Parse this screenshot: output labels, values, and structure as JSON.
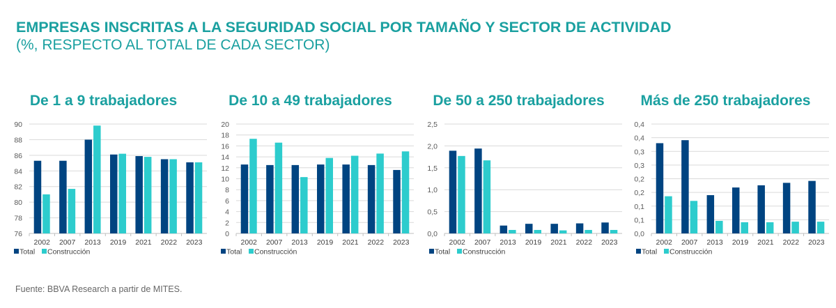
{
  "title": "EMPRESAS INSCRITAS A LA SEGURIDAD SOCIAL POR TAMAÑO Y SECTOR DE ACTIVIDAD",
  "subtitle": "(%, RESPECTO AL TOTAL DE CADA SECTOR)",
  "source": "Fuente: BBVA Research a partir de MITES.",
  "colors": {
    "title": "#1aa0a0",
    "total": "#004481",
    "construccion": "#2dcccd"
  },
  "chart_data": [
    {
      "type": "bar",
      "title": "De 1 a 9 trabajadores",
      "categories": [
        "2002",
        "2007",
        "2013",
        "2019",
        "2021",
        "2022",
        "2023"
      ],
      "series": [
        {
          "name": "Total",
          "values": [
            85.3,
            85.3,
            88.0,
            86.1,
            85.9,
            85.5,
            85.1
          ]
        },
        {
          "name": "Construcción",
          "values": [
            81.0,
            81.7,
            89.8,
            86.2,
            85.8,
            85.5,
            85.1
          ]
        }
      ],
      "ylim": [
        76,
        90
      ],
      "yticks": [
        76,
        78,
        80,
        82,
        84,
        86,
        88,
        90
      ],
      "ytick_labels": [
        "76",
        "78",
        "80",
        "82",
        "84",
        "86",
        "88",
        "90"
      ],
      "legend": "bottom-left",
      "grid": true
    },
    {
      "type": "bar",
      "title": "De 10 a 49 trabajadores",
      "categories": [
        "2002",
        "2007",
        "2013",
        "2019",
        "2021",
        "2022",
        "2023"
      ],
      "series": [
        {
          "name": "Total",
          "values": [
            12.6,
            12.5,
            12.5,
            12.6,
            12.6,
            12.5,
            11.6
          ]
        },
        {
          "name": "Construcción",
          "values": [
            17.3,
            16.6,
            10.3,
            13.8,
            14.2,
            14.6,
            15.0
          ]
        }
      ],
      "ylim": [
        0,
        20
      ],
      "yticks": [
        0,
        2,
        4,
        6,
        8,
        10,
        12,
        14,
        16,
        18,
        20
      ],
      "ytick_labels": [
        "0",
        "2",
        "4",
        "6",
        "8",
        "10",
        "12",
        "14",
        "16",
        "18",
        "20"
      ],
      "legend": "bottom-left",
      "grid": true
    },
    {
      "type": "bar",
      "title": "De 50 a 250 trabajadores",
      "categories": [
        "2002",
        "2007",
        "2013",
        "2019",
        "2021",
        "2022",
        "2023"
      ],
      "series": [
        {
          "name": "Total",
          "values": [
            1.89,
            1.94,
            0.18,
            0.22,
            0.22,
            0.23,
            0.25
          ]
        },
        {
          "name": "Construcción",
          "values": [
            1.77,
            1.67,
            0.08,
            0.08,
            0.07,
            0.08,
            0.08
          ]
        }
      ],
      "ylim": [
        0,
        2.5
      ],
      "yticks": [
        0,
        0.5,
        1.0,
        1.5,
        2.0,
        2.5
      ],
      "ytick_labels": [
        "0,0",
        "0,5",
        "1,0",
        "1,5",
        "2,0",
        "2,5"
      ],
      "legend": "bottom-left",
      "grid": true
    },
    {
      "type": "bar",
      "title": "Más de 250 trabajadores",
      "categories": [
        "2002",
        "2007",
        "2013",
        "2019",
        "2021",
        "2022",
        "2023"
      ],
      "series": [
        {
          "name": "Total",
          "values": [
            0.33,
            0.341,
            0.14,
            0.168,
            0.176,
            0.185,
            0.192
          ]
        },
        {
          "name": "Construcción",
          "values": [
            0.136,
            0.119,
            0.046,
            0.041,
            0.041,
            0.043,
            0.043
          ]
        }
      ],
      "ylim": [
        0,
        0.4
      ],
      "yticks": [
        0,
        0.05,
        0.1,
        0.15,
        0.2,
        0.25,
        0.3,
        0.35,
        0.4
      ],
      "ytick_labels": [
        "0,0",
        "0,1",
        "0,1",
        "0,2",
        "0,2",
        "0,3",
        "0,3",
        "0,4",
        "0,4"
      ],
      "legend": "bottom-left",
      "grid": true
    }
  ]
}
